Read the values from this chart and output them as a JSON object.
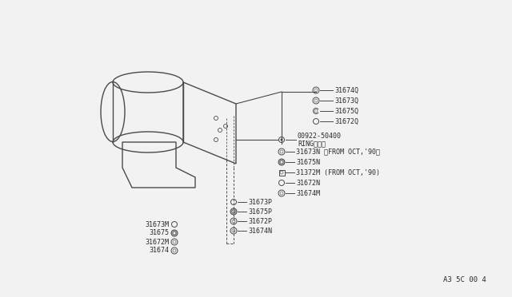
{
  "bg_color": "#f2f2f2",
  "line_color": "#4a4a4a",
  "text_color": "#2a2a2a",
  "ref_code": "A3 5C 00 4",
  "parts_right_top": [
    {
      "label": "31674Q"
    },
    {
      "label": "31673Q"
    },
    {
      "label": "31675Q"
    },
    {
      "label": "31672Q"
    }
  ],
  "parts_ring_label": "00922-50400",
  "parts_ring_sub": "RINGリング",
  "parts_right_mid": [
    {
      "label": "31673N",
      "note": " ＜FROM OCT,'90＞"
    },
    {
      "label": "31675N",
      "note": ""
    },
    {
      "label": "31372M",
      "note": " (FROM OCT,'90)"
    },
    {
      "label": "31672N",
      "note": ""
    },
    {
      "label": "31674M",
      "note": ""
    }
  ],
  "parts_right_bot": [
    {
      "label": "31673P"
    },
    {
      "label": "31675P"
    },
    {
      "label": "31672P"
    },
    {
      "label": "31674N"
    }
  ],
  "parts_left_bot": [
    {
      "label": "31673M"
    },
    {
      "label": "31675"
    },
    {
      "label": "31672M"
    },
    {
      "label": "31674"
    }
  ]
}
